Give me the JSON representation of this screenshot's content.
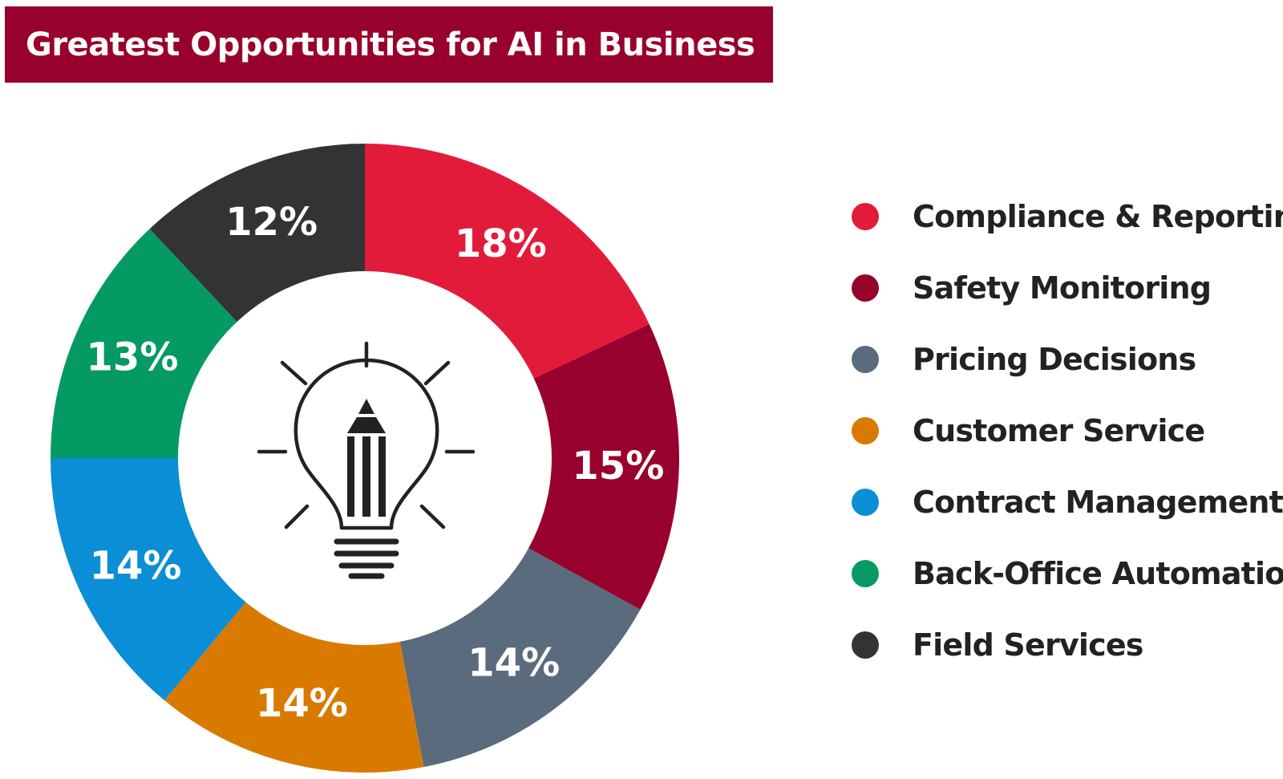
{
  "title": "Greatest Opportunities for AI in Business",
  "icon": "lightbulb-pencil-icon",
  "colors": {
    "banner": "#98002e",
    "center": "#ffffff",
    "icon": "#222222"
  },
  "chart_data": {
    "type": "pie",
    "title": "Greatest Opportunities for AI in Business",
    "legend_position": "right",
    "slices": [
      {
        "name": "Compliance & Reporting",
        "value": 18,
        "label": "18%",
        "color": "#e31b3b"
      },
      {
        "name": "Safety Monitoring",
        "value": 15,
        "label": "15%",
        "color": "#98002e"
      },
      {
        "name": "Pricing Decisions",
        "value": 14,
        "label": "14%",
        "color": "#5b6b7e"
      },
      {
        "name": "Customer Service",
        "value": 14,
        "label": "14%",
        "color": "#d97a00"
      },
      {
        "name": "Contract Management",
        "value": 14,
        "label": "14%",
        "color": "#0a8ed6"
      },
      {
        "name": "Back-Office Automation",
        "value": 13,
        "label": "13%",
        "color": "#059a64"
      },
      {
        "name": "Field Services",
        "value": 12,
        "label": "12%",
        "color": "#333333"
      }
    ]
  }
}
